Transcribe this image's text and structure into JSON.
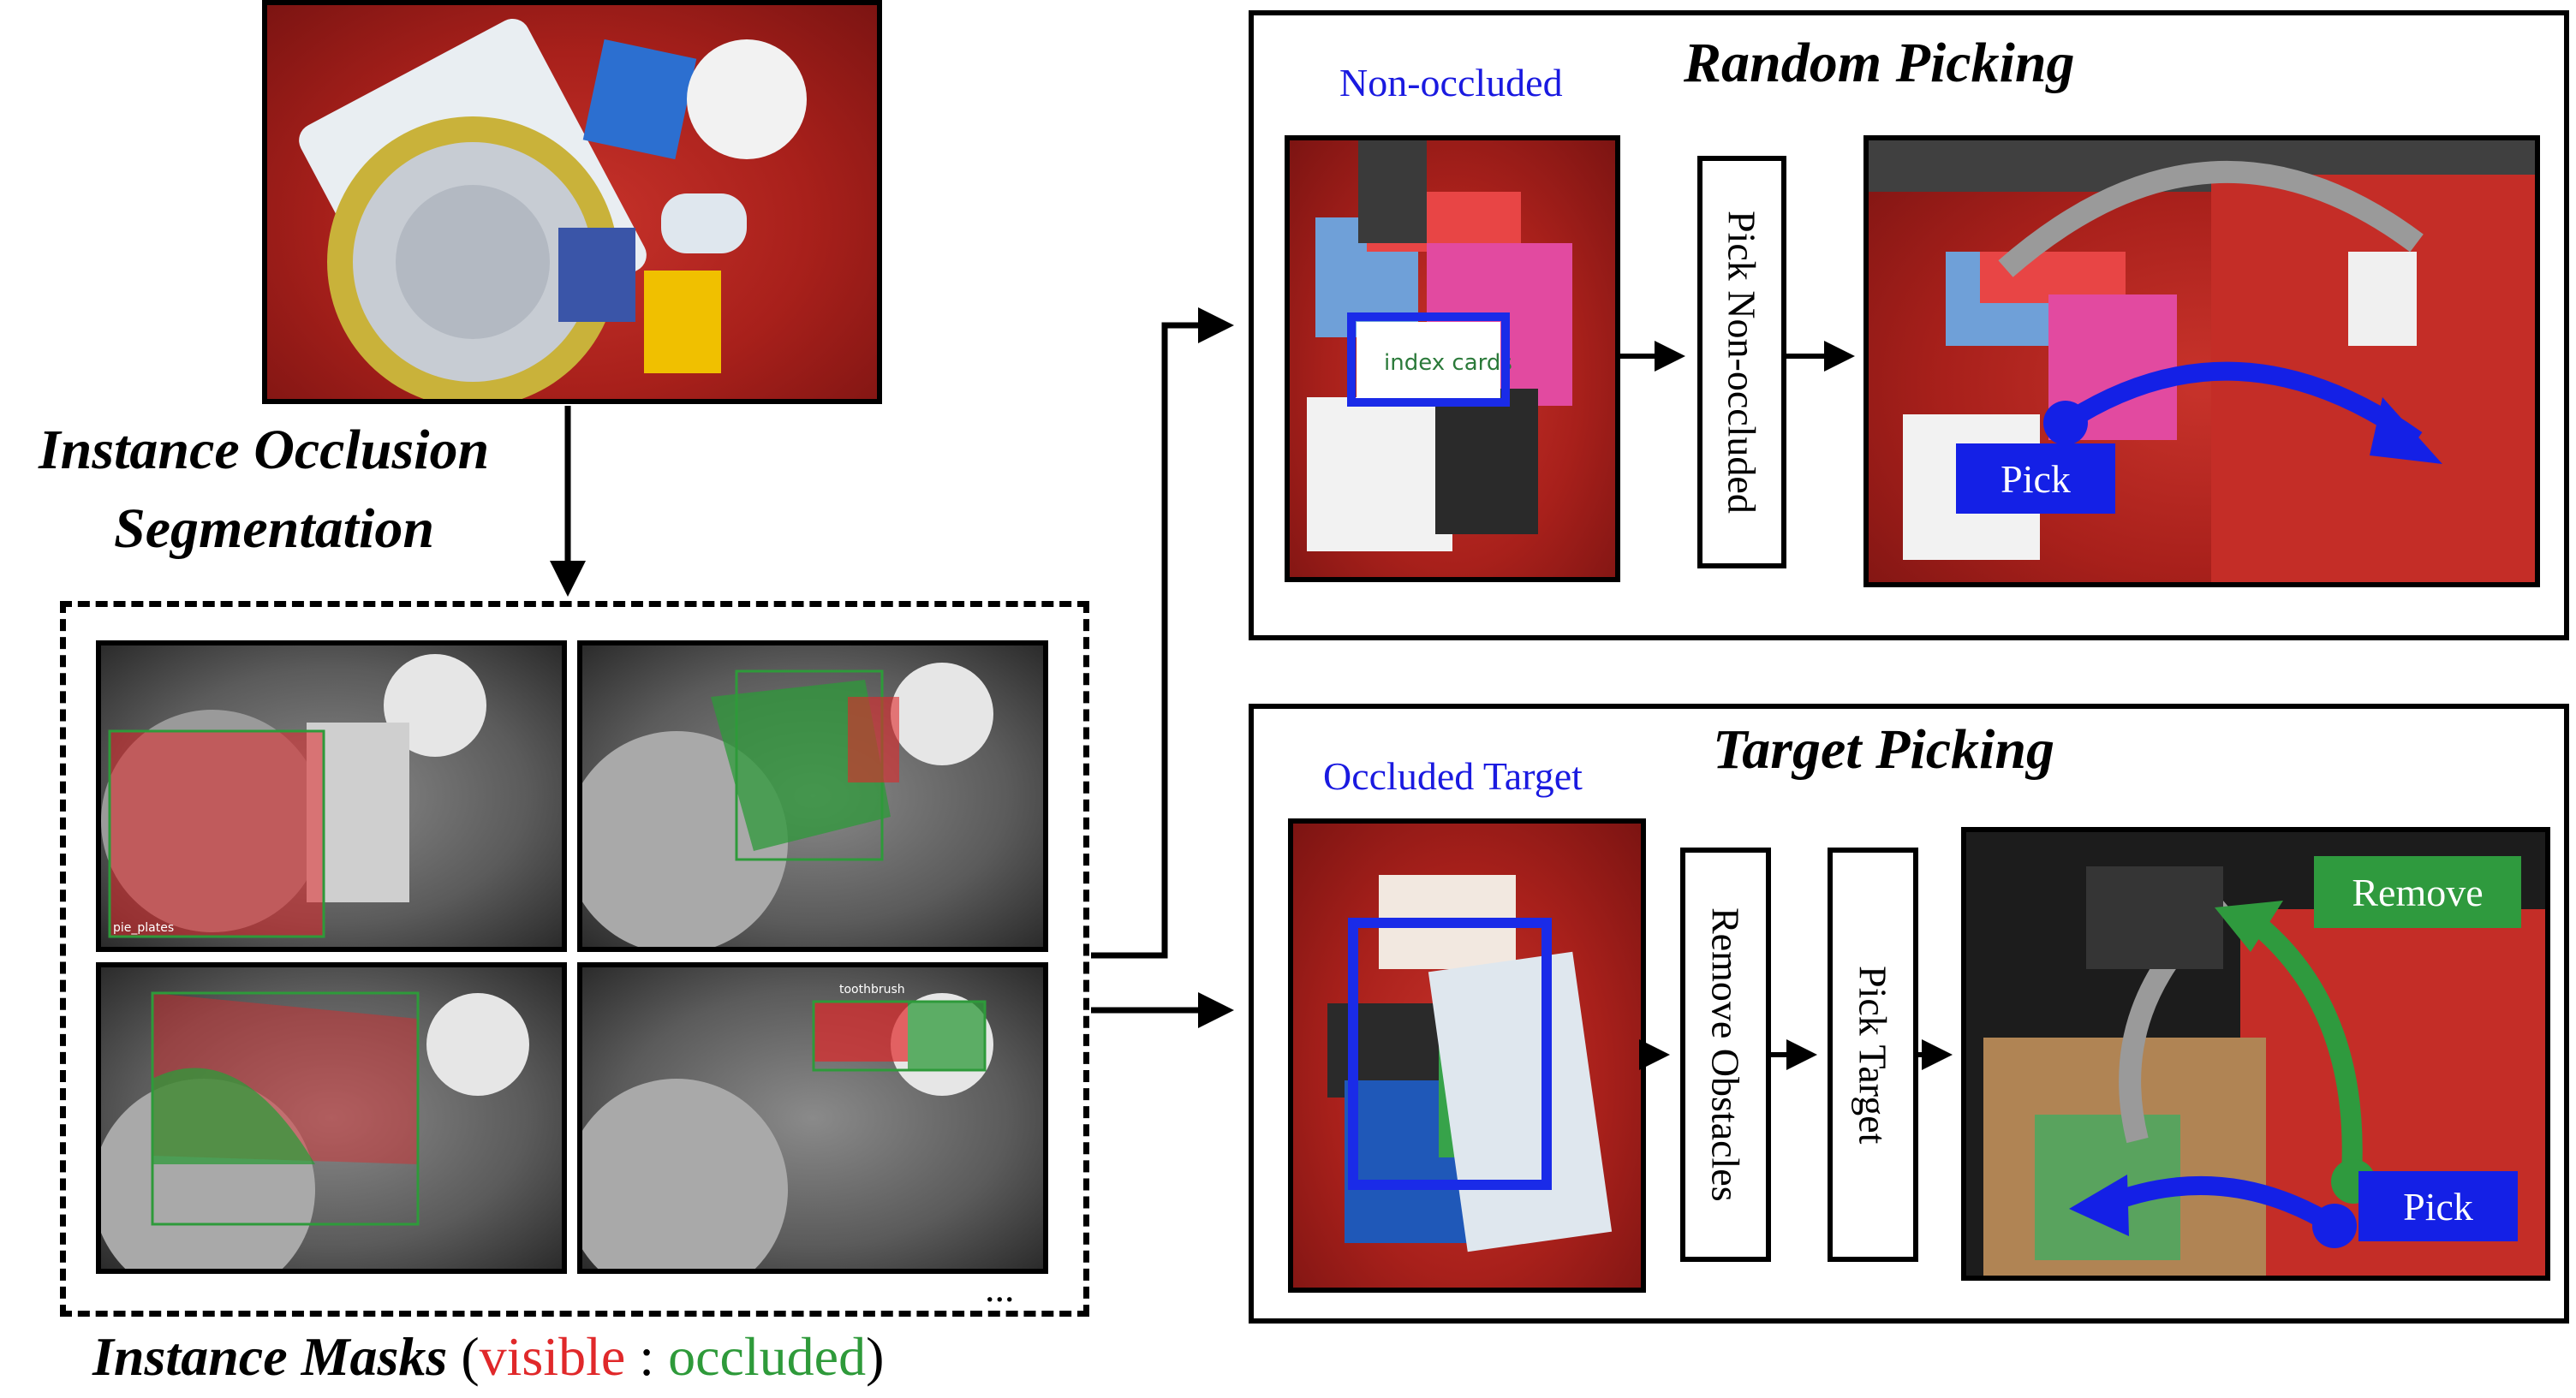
{
  "left": {
    "step_label_line1": "Instance Occlusion",
    "step_label_line2": "Segmentation",
    "mask_label_text": "pie_plates",
    "mask_label_text2": "toothbrush",
    "ellipsis": "...",
    "caption_prefix": "Instance Masks",
    "caption_open": "(",
    "caption_visible": "visible",
    "caption_sep": " : ",
    "caption_occluded": "occluded",
    "caption_close": ")"
  },
  "random": {
    "title": "Random Picking",
    "label": "Non-occluded",
    "step": "Pick Non-occluded",
    "pick_tag": "Pick",
    "item_text": "index cards"
  },
  "target": {
    "title": "Target Picking",
    "label": "Occluded Target",
    "step1": "Remove Obstacles",
    "step2": "Pick Target",
    "remove_tag": "Remove",
    "pick_tag": "Pick"
  },
  "colors": {
    "visible": "#e0282a",
    "occluded": "#2e9a3a",
    "box_blue": "#1a2be8",
    "tag_green": "#2f9a3e",
    "tag_blue": "#1420e6"
  }
}
